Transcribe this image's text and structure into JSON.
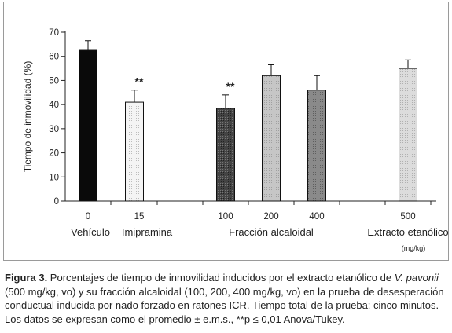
{
  "chart_data": {
    "type": "bar",
    "title": "",
    "xlabel": "",
    "ylabel": "Tiempo de inmovilidad (%)",
    "ylim": [
      0,
      70
    ],
    "yticks": [
      0,
      10,
      20,
      30,
      40,
      50,
      60,
      70
    ],
    "grid": false,
    "legend": "none",
    "unit_label": "(mg/kg)",
    "groups": [
      {
        "label": "Vehículo"
      },
      {
        "label": "Imipramina"
      },
      {
        "label": "Fracción alcaloidal"
      },
      {
        "label": "Extracto etanólico"
      }
    ],
    "bars": [
      {
        "dose": "0",
        "value": 62.5,
        "error": 4.0,
        "significance": "",
        "color": "#0a0a0a"
      },
      {
        "dose": "15",
        "value": 41,
        "error": 5.0,
        "significance": "**",
        "color": "#f2f2f2"
      },
      {
        "dose": "100",
        "value": 38.5,
        "error": 5.5,
        "significance": "**",
        "color": "#3a3a3a"
      },
      {
        "dose": "200",
        "value": 52,
        "error": 4.5,
        "significance": "",
        "color": "#b5b5b5"
      },
      {
        "dose": "400",
        "value": 46,
        "error": 6.0,
        "significance": "",
        "color": "#7a7a7a"
      },
      {
        "dose": "500",
        "value": 55,
        "error": 3.5,
        "significance": "",
        "color": "#d0d0d0"
      }
    ]
  },
  "caption": {
    "label": "Figura 3.",
    "text_before": " Porcentajes de tiempo de inmovilidad inducidos por el extracto etanólico de ",
    "species": "V. pavonii",
    "text_after": " (500 mg/kg, vo) y su fracción alcaloidal (100, 200, 400 mg/kg, vo) en la prueba de desesperación conductual inducida por nado forzado en ratones ICR. Tiempo total de la prueba: cinco minutos. Los datos se expresan como el promedio ± e.m.s., **p ≤ 0,01 Anova/Tukey."
  }
}
